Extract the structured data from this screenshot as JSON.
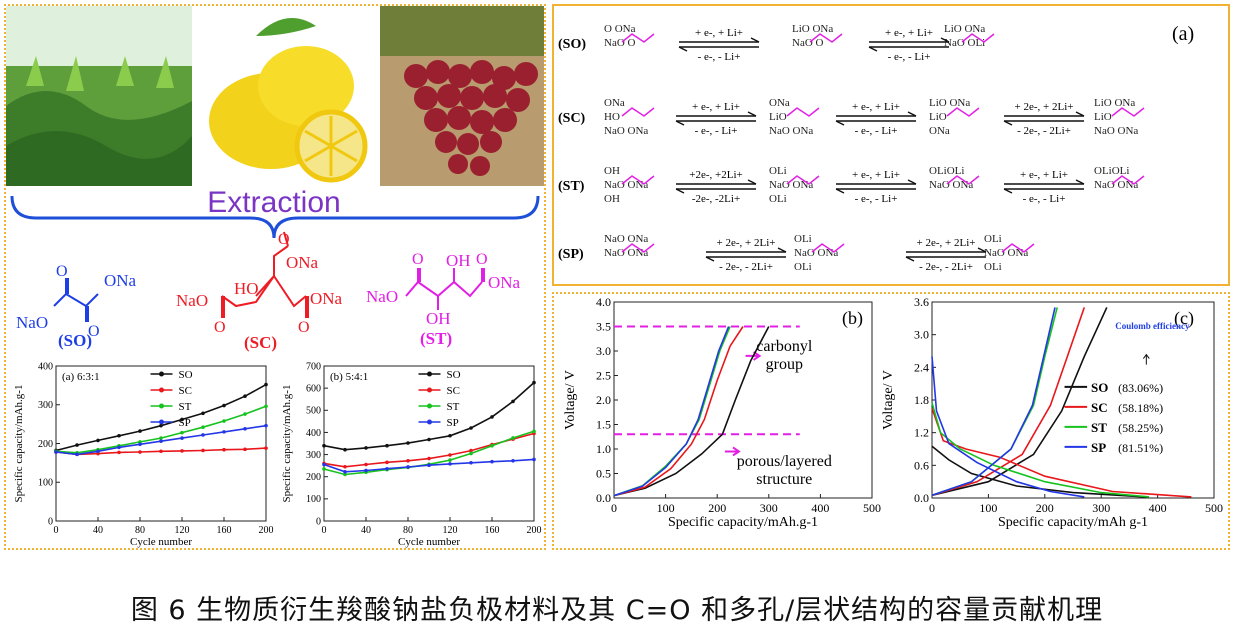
{
  "caption": "图 6  生物质衍生羧酸钠盐负极材料及其 C=O  和多孔/层状结构的容量贡献机理",
  "extraction": {
    "label": "Extraction",
    "molecules": [
      {
        "abbr": "(SO)",
        "groups": [
          "ONa",
          "NaO"
        ],
        "color": "#1f3fe6"
      },
      {
        "abbr": "(SC)",
        "groups": [
          "ONa",
          "HO",
          "NaO",
          "ONa"
        ],
        "color": "#ee1c25"
      },
      {
        "abbr": "(ST)",
        "groups": [
          "OH",
          "NaO",
          "OH",
          "ONa"
        ],
        "color": "#e21fe5"
      }
    ]
  },
  "scheme": {
    "panel_label": "(a)",
    "rows": [
      {
        "abbr": "(SO)",
        "steps": [
          "+ e-, + Li+ / - e-, - Li+",
          "+ e-, + Li+ / - e-, - Li+"
        ]
      },
      {
        "abbr": "(SC)",
        "steps": [
          "+ e-, + Li+ / - e-, - Li+",
          "+ e-, + Li+ / - e-, - Li+",
          "+ 2e-, + 2Li+ / - 2e-, - 2Li+"
        ]
      },
      {
        "abbr": "(ST)",
        "steps": [
          "+2e-, +2Li+ / -2e-, -2Li+",
          "+ e-, + Li+ / - e-, - Li+",
          "+ e-, + Li+ / - e-, - Li+"
        ]
      },
      {
        "abbr": "(SP)",
        "steps": [
          "+ 2e-, + 2Li+ / - 2e-, - 2Li+",
          "+ 2e-, + 2Li+ / - 2e-, - 2Li+"
        ]
      }
    ],
    "step_top": {
      "e1": "+ e-, + Li+",
      "e2": "+ 2e-, + 2Li+",
      "e2b": "+2e-, +2Li+"
    },
    "step_bottom": {
      "e1": "- e-, - Li+",
      "e2": "- 2e-, - 2Li+",
      "e2b": "-2e-, -2Li+"
    }
  },
  "colors": {
    "SO": "#111111",
    "SC": "#e8171b",
    "ST": "#16c21d",
    "SP": "#2437e6",
    "accent": "#f2b233",
    "brace": "#1e4fd9",
    "dash": "#e41fe4"
  },
  "chart_data": [
    {
      "type": "line",
      "title": "(a) 6:3:1",
      "xlabel": "Cycle number",
      "ylabel": "Specific capacity/mAh.g-1",
      "xlim": [
        0,
        200
      ],
      "ylim": [
        0,
        400
      ],
      "xticks": [
        0,
        40,
        80,
        120,
        160,
        200
      ],
      "yticks": [
        0,
        100,
        200,
        300,
        400
      ],
      "x": [
        0,
        20,
        40,
        60,
        80,
        100,
        120,
        140,
        160,
        180,
        200
      ],
      "series": [
        {
          "name": "SO",
          "values": [
            182,
            196,
            208,
            220,
            232,
            246,
            262,
            278,
            298,
            322,
            352
          ]
        },
        {
          "name": "SC",
          "values": [
            178,
            172,
            174,
            177,
            178,
            180,
            181,
            182,
            184,
            185,
            188
          ]
        },
        {
          "name": "ST",
          "values": [
            180,
            176,
            184,
            194,
            204,
            214,
            228,
            242,
            258,
            276,
            296
          ]
        },
        {
          "name": "SP",
          "values": [
            178,
            172,
            180,
            190,
            198,
            206,
            214,
            222,
            230,
            238,
            246
          ]
        }
      ]
    },
    {
      "type": "line",
      "title": "(b) 5:4:1",
      "xlabel": "Cycle number",
      "ylabel": "Specific capacity/mAh.g-1",
      "xlim": [
        0,
        200
      ],
      "ylim": [
        0,
        700
      ],
      "xticks": [
        0,
        40,
        80,
        120,
        160,
        200
      ],
      "yticks": [
        0,
        100,
        200,
        300,
        400,
        500,
        600,
        700
      ],
      "x": [
        0,
        20,
        40,
        60,
        80,
        100,
        120,
        140,
        160,
        180,
        200
      ],
      "series": [
        {
          "name": "SO",
          "values": [
            340,
            322,
            330,
            340,
            352,
            368,
            385,
            420,
            470,
            540,
            625
          ]
        },
        {
          "name": "SC",
          "values": [
            260,
            245,
            255,
            265,
            272,
            282,
            298,
            318,
            345,
            370,
            395
          ]
        },
        {
          "name": "ST",
          "values": [
            235,
            210,
            220,
            232,
            242,
            256,
            275,
            305,
            340,
            375,
            405
          ]
        },
        {
          "name": "SP",
          "values": [
            255,
            222,
            228,
            236,
            244,
            252,
            258,
            263,
            268,
            272,
            278
          ]
        }
      ]
    },
    {
      "type": "line",
      "title": "(b)",
      "xlabel": "Specific capacity/mAh.g-1",
      "ylabel": "Voltage/ V",
      "xlim": [
        0,
        500
      ],
      "ylim": [
        0,
        4.0
      ],
      "xticks": [
        0,
        100,
        200,
        300,
        400,
        500
      ],
      "yticks": [
        0.0,
        0.5,
        1.0,
        1.5,
        2.0,
        2.5,
        3.0,
        3.5,
        4.0
      ],
      "annotations": [
        "carbonyl group",
        "porous/layered structure"
      ],
      "series": [
        {
          "name": "SO",
          "points": [
            [
              0,
              0.05
            ],
            [
              60,
              0.2
            ],
            [
              120,
              0.5
            ],
            [
              170,
              0.9
            ],
            [
              210,
              1.3
            ],
            [
              235,
              2.0
            ],
            [
              265,
              2.8
            ],
            [
              300,
              3.5
            ]
          ]
        },
        {
          "name": "SC",
          "points": [
            [
              0,
              0.05
            ],
            [
              60,
              0.22
            ],
            [
              110,
              0.6
            ],
            [
              150,
              1.1
            ],
            [
              175,
              1.6
            ],
            [
              200,
              2.4
            ],
            [
              225,
              3.1
            ],
            [
              250,
              3.5
            ]
          ]
        },
        {
          "name": "ST",
          "points": [
            [
              0,
              0.05
            ],
            [
              55,
              0.25
            ],
            [
              100,
              0.65
            ],
            [
              140,
              1.1
            ],
            [
              165,
              1.6
            ],
            [
              185,
              2.3
            ],
            [
              205,
              3.0
            ],
            [
              225,
              3.5
            ]
          ]
        },
        {
          "name": "SP",
          "points": [
            [
              0,
              0.05
            ],
            [
              55,
              0.24
            ],
            [
              100,
              0.62
            ],
            [
              140,
              1.1
            ],
            [
              163,
              1.6
            ],
            [
              183,
              2.3
            ],
            [
              203,
              3.0
            ],
            [
              222,
              3.5
            ]
          ]
        }
      ]
    },
    {
      "type": "line",
      "title": "(c)",
      "xlabel": "Specific capacity/mAh g-1",
      "ylabel": "Voltage/ V",
      "xlim": [
        0,
        500
      ],
      "ylim": [
        0,
        3.6
      ],
      "xticks": [
        0,
        100,
        200,
        300,
        400,
        500
      ],
      "yticks": [
        0.0,
        0.6,
        1.2,
        1.8,
        2.4,
        3.0,
        3.6
      ],
      "annotation": "Coulomb efficiency",
      "legend": [
        {
          "name": "SO",
          "efficiency": "(83.06%)"
        },
        {
          "name": "SC",
          "efficiency": "(58.18%)"
        },
        {
          "name": "ST",
          "efficiency": "(58.25%)"
        },
        {
          "name": "SP",
          "efficiency": "(81.51%)"
        }
      ],
      "series": [
        {
          "name": "SO",
          "discharge": [
            [
              0,
              0.95
            ],
            [
              30,
              0.7
            ],
            [
              70,
              0.45
            ],
            [
              150,
              0.22
            ],
            [
              250,
              0.1
            ],
            [
              380,
              0.02
            ]
          ],
          "charge": [
            [
              0,
              0.05
            ],
            [
              100,
              0.3
            ],
            [
              180,
              0.8
            ],
            [
              230,
              1.6
            ],
            [
              270,
              2.6
            ],
            [
              310,
              3.5
            ]
          ]
        },
        {
          "name": "SC",
          "discharge": [
            [
              0,
              1.65
            ],
            [
              20,
              1.05
            ],
            [
              60,
              0.9
            ],
            [
              120,
              0.75
            ],
            [
              200,
              0.4
            ],
            [
              320,
              0.12
            ],
            [
              460,
              0.02
            ]
          ],
          "charge": [
            [
              0,
              0.05
            ],
            [
              80,
              0.3
            ],
            [
              160,
              0.8
            ],
            [
              210,
              1.7
            ],
            [
              240,
              2.6
            ],
            [
              270,
              3.5
            ]
          ]
        },
        {
          "name": "ST",
          "discharge": [
            [
              0,
              1.75
            ],
            [
              15,
              1.2
            ],
            [
              50,
              0.9
            ],
            [
              110,
              0.6
            ],
            [
              200,
              0.3
            ],
            [
              300,
              0.1
            ],
            [
              385,
              0.02
            ]
          ],
          "charge": [
            [
              0,
              0.05
            ],
            [
              70,
              0.3
            ],
            [
              140,
              0.9
            ],
            [
              180,
              1.7
            ],
            [
              200,
              2.6
            ],
            [
              222,
              3.5
            ]
          ]
        },
        {
          "name": "SP",
          "discharge": [
            [
              0,
              2.6
            ],
            [
              8,
              1.6
            ],
            [
              30,
              1.0
            ],
            [
              80,
              0.65
            ],
            [
              150,
              0.3
            ],
            [
              210,
              0.12
            ],
            [
              270,
              0.02
            ]
          ],
          "charge": [
            [
              0,
              0.05
            ],
            [
              70,
              0.3
            ],
            [
              140,
              0.9
            ],
            [
              178,
              1.7
            ],
            [
              198,
              2.6
            ],
            [
              218,
              3.5
            ]
          ]
        }
      ]
    }
  ]
}
